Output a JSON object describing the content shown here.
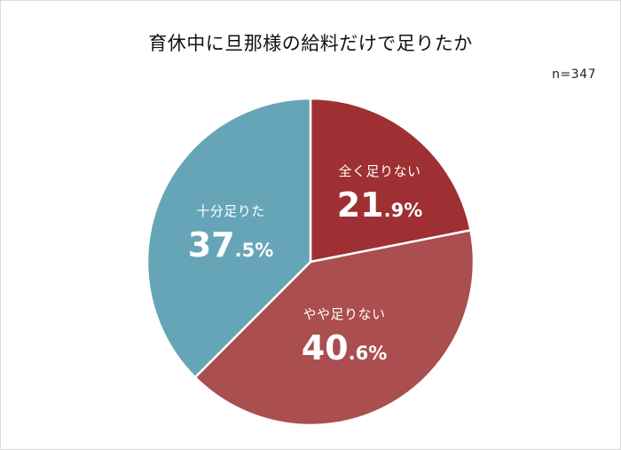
{
  "chart_data": {
    "type": "pie",
    "title": "育休中に旦那様の給料だけで足りたか",
    "annotation": "n=347",
    "start_angle": "12 o'clock, clockwise",
    "slices": [
      {
        "label": "全く足りない",
        "value": 21.9,
        "int": "21",
        "dec": ".9%",
        "color": "#9e3033"
      },
      {
        "label": "やや足りない",
        "value": 40.6,
        "int": "40",
        "dec": ".6%",
        "color": "#ab4e4f"
      },
      {
        "label": "十分足りた",
        "value": 37.5,
        "int": "37",
        "dec": ".5%",
        "color": "#66a5b8"
      }
    ],
    "legend": "none (labels inside slices)"
  }
}
